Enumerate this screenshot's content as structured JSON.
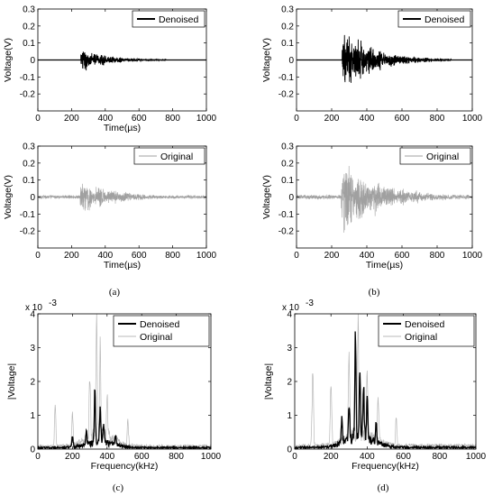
{
  "chart_data": [
    {
      "id": "a-top",
      "type": "line",
      "xlabel": "Time(µs)",
      "ylabel": "Voltage(V)",
      "xlim": [
        0,
        1000
      ],
      "ylim": [
        -0.3,
        0.3
      ],
      "xticks": [
        "0",
        "200",
        "400",
        "600",
        "800",
        "1000"
      ],
      "yticks": [
        "0.3",
        "0.2",
        "0.1",
        "0",
        "-0.1",
        "-0.2"
      ],
      "legend": {
        "position": "top-right",
        "entries": [
          {
            "name": "Denoised",
            "color": "#000000"
          }
        ]
      },
      "series": [
        {
          "name": "Denoised",
          "color": "#000000",
          "signal": "burst",
          "onset": 255,
          "peak_amplitude": 0.09,
          "decay_to": 760,
          "noise_floor": 0.0
        }
      ]
    },
    {
      "id": "b-top",
      "type": "line",
      "xlabel": "",
      "ylabel": "Voltage(V)",
      "xlim": [
        0,
        1000
      ],
      "ylim": [
        -0.3,
        0.3
      ],
      "xticks": [
        "0",
        "200",
        "400",
        "600",
        "800",
        "1000"
      ],
      "yticks": [
        "0.3",
        "0.2",
        "0.1",
        "0",
        "-0.1",
        "-0.2"
      ],
      "legend": {
        "position": "top-right",
        "entries": [
          {
            "name": "Denoised",
            "color": "#000000"
          }
        ]
      },
      "series": [
        {
          "name": "Denoised",
          "color": "#000000",
          "signal": "burst",
          "onset": 260,
          "peak_amplitude": 0.23,
          "decay_to": 880,
          "noise_floor": 0.0
        }
      ]
    },
    {
      "id": "a-bottom",
      "type": "line",
      "xlabel": "Time(µs)",
      "ylabel": "Voltage(V)",
      "xlim": [
        0,
        1000
      ],
      "ylim": [
        -0.3,
        0.3
      ],
      "xticks": [
        "0",
        "200",
        "400",
        "600",
        "800",
        "1000"
      ],
      "yticks": [
        "0.3",
        "0.2",
        "0.1",
        "0",
        "-0.1",
        "-0.2"
      ],
      "legend": {
        "position": "top-right",
        "entries": [
          {
            "name": "Original",
            "color": "#a0a0a0"
          }
        ]
      },
      "series": [
        {
          "name": "Original",
          "color": "#a0a0a0",
          "signal": "burst",
          "onset": 250,
          "peak_amplitude": 0.12,
          "decay_to": 1000,
          "noise_floor": 0.012
        }
      ]
    },
    {
      "id": "b-bottom",
      "type": "line",
      "xlabel": "Time(µs)",
      "ylabel": "Voltage(V)",
      "xlim": [
        0,
        1000
      ],
      "ylim": [
        -0.3,
        0.3
      ],
      "xticks": [
        "0",
        "200",
        "400",
        "600",
        "800",
        "1000"
      ],
      "yticks": [
        "0.3",
        "0.2",
        "0.1",
        "0",
        "-0.1",
        "-0.2"
      ],
      "legend": {
        "position": "top-right",
        "entries": [
          {
            "name": "Original",
            "color": "#a0a0a0"
          }
        ]
      },
      "series": [
        {
          "name": "Original",
          "color": "#a0a0a0",
          "signal": "burst",
          "onset": 255,
          "peak_amplitude": 0.3,
          "decay_to": 1000,
          "noise_floor": 0.015
        }
      ]
    },
    {
      "id": "c",
      "type": "line",
      "xlabel": "Frequency(kHz)",
      "ylabel": "|Voltage|",
      "xlim": [
        0,
        1000
      ],
      "ylim": [
        0,
        4
      ],
      "y_multiplier": "x 10",
      "y_exponent": "-3",
      "xticks": [
        "0",
        "200",
        "400",
        "600",
        "800",
        "1000"
      ],
      "yticks": [
        "4",
        "3",
        "2",
        "1",
        "0"
      ],
      "legend": {
        "position": "top-right",
        "entries": [
          {
            "name": "Denoised",
            "color": "#000000"
          },
          {
            "name": "Original",
            "color": "#b8b8b8"
          }
        ]
      },
      "series": [
        {
          "name": "Denoised",
          "color": "#000000",
          "signal": "spectrum",
          "main_peak_x": 330,
          "main_peak_y": 1.75,
          "side_peaks": [
            [
              360,
              1.1
            ],
            [
              380,
              0.65
            ],
            [
              280,
              0.45
            ],
            [
              200,
              0.35
            ],
            [
              450,
              0.3
            ]
          ],
          "floor": 0.05
        },
        {
          "name": "Original",
          "color": "#b8b8b8",
          "signal": "spectrum",
          "main_peak_x": 340,
          "main_peak_y": 3.95,
          "side_peaks": [
            [
              100,
              1.3
            ],
            [
              300,
              2.0
            ],
            [
              360,
              2.8
            ],
            [
              200,
              1.0
            ],
            [
              400,
              1.2
            ],
            [
              520,
              0.8
            ]
          ],
          "floor": 0.1
        }
      ]
    },
    {
      "id": "d",
      "type": "line",
      "xlabel": "Frequency(kHz)",
      "ylabel": "|Voltage|",
      "xlim": [
        0,
        1000
      ],
      "ylim": [
        0,
        4
      ],
      "y_multiplier": "x 10",
      "y_exponent": "-3",
      "xticks": [
        "0",
        "200",
        "400",
        "600",
        "800",
        "1000"
      ],
      "yticks": [
        "4",
        "3",
        "2",
        "1",
        "0"
      ],
      "legend": {
        "position": "top-right",
        "entries": [
          {
            "name": "Denoised",
            "color": "#000000"
          },
          {
            "name": "Original",
            "color": "#b8b8b8"
          }
        ]
      },
      "series": [
        {
          "name": "Denoised",
          "color": "#000000",
          "signal": "spectrum",
          "main_peak_x": 335,
          "main_peak_y": 3.2,
          "side_peaks": [
            [
              360,
              2.0
            ],
            [
              380,
              1.7
            ],
            [
              300,
              1.2
            ],
            [
              400,
              1.3
            ],
            [
              260,
              0.8
            ],
            [
              450,
              0.6
            ]
          ],
          "floor": 0.06
        },
        {
          "name": "Original",
          "color": "#b8b8b8",
          "signal": "spectrum",
          "main_peak_x": 350,
          "main_peak_y": 3.95,
          "side_peaks": [
            [
              100,
              2.4
            ],
            [
              200,
              2.0
            ],
            [
              300,
              2.8
            ],
            [
              400,
              2.0
            ],
            [
              460,
              1.5
            ],
            [
              560,
              0.9
            ]
          ],
          "floor": 0.12
        }
      ]
    }
  ],
  "panel_labels": {
    "a": "(a)",
    "b": "(b)",
    "c": "(c)",
    "d": "(d)"
  }
}
